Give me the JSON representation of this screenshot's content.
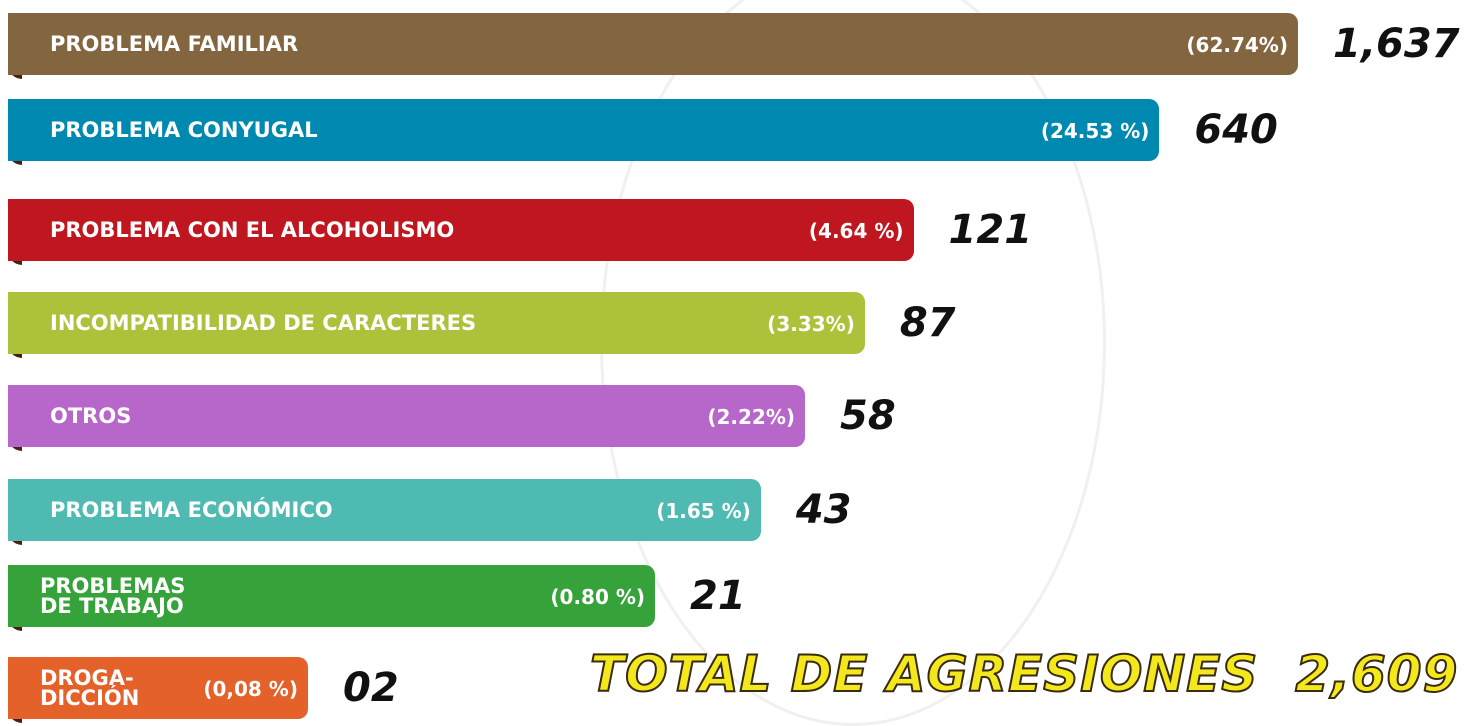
{
  "chart_data": {
    "type": "bar",
    "categories": [
      "PROBLEMA FAMILIAR",
      "PROBLEMA CONYUGAL",
      "PROBLEMA CON EL ALCOHOLISMO",
      "INCOMPATIBILIDAD DE CARACTERES",
      "OTROS",
      "PROBLEMA ECONÓMICO",
      "PROBLEMAS\nDE TRABAJO",
      "DROGA-\nDICCIÓN"
    ],
    "values": [
      1637,
      640,
      121,
      87,
      58,
      43,
      21,
      2
    ],
    "value_labels": [
      "1,637",
      "640",
      "121",
      "87",
      "58",
      "43",
      "21",
      "02"
    ],
    "percent_labels": [
      "(62.74%)",
      "(24.53 %)",
      "(4.64 %)",
      "(3.33%)",
      "(2.22%)",
      "(1.65 %)",
      "(0.80 %)",
      "(0,08 %)"
    ],
    "colors": [
      "#836640",
      "#0089b0",
      "#c0161f",
      "#adc23a",
      "#b767c9",
      "#4fbab1",
      "#35a33a",
      "#e5612a"
    ],
    "total_label": "TOTAL DE AGRESIONES  2,609"
  }
}
